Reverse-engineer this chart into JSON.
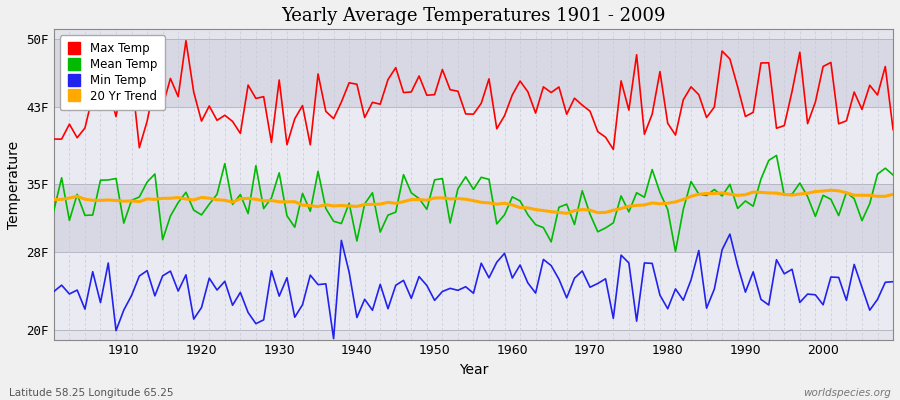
{
  "title": "Yearly Average Temperatures 1901 - 2009",
  "xlabel": "Year",
  "ylabel": "Temperature",
  "subtitle_lat": "Latitude 58.25 Longitude 65.25",
  "watermark": "worldspecies.org",
  "yticks": [
    20,
    28,
    35,
    43,
    50
  ],
  "ytick_labels": [
    "20F",
    "28F",
    "35F",
    "43F",
    "50F"
  ],
  "xlim": [
    1901,
    2009
  ],
  "ylim": [
    19,
    51
  ],
  "plot_bg_color": "#e0e0e8",
  "band_colors": [
    "#e8e8f0",
    "#d8d8e0"
  ],
  "grid_color": "#c0c0cc",
  "colors": {
    "max": "#ff0000",
    "mean": "#00bb00",
    "min": "#2222ee",
    "trend": "#ffaa00"
  },
  "legend_labels": [
    "Max Temp",
    "Mean Temp",
    "Min Temp",
    "20 Yr Trend"
  ]
}
